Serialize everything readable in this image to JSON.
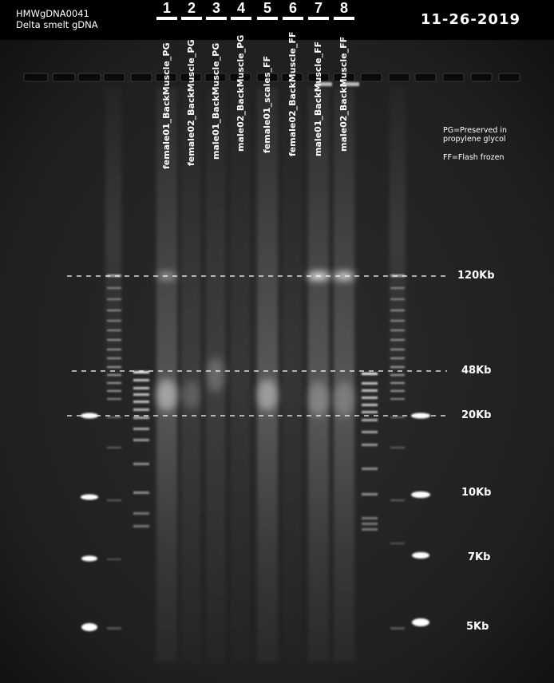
{
  "header": {
    "sample_id": "HMWgDNA0041",
    "description": "Delta smelt gDNA",
    "date": "11-26-2019"
  },
  "lanes": [
    {
      "number": "1",
      "label": "female01_BackMuscle_PG"
    },
    {
      "number": "2",
      "label": "female02_BackMuscle_PG"
    },
    {
      "number": "3",
      "label": "male01_BackMuscle_PG"
    },
    {
      "number": "4",
      "label": "male02_BackMuscle_PG"
    },
    {
      "number": "5",
      "label": "female01_scales_FF"
    },
    {
      "number": "6",
      "label": "female02_BackMuscle_FF"
    },
    {
      "number": "7",
      "label": "male01_BackMuscle_FF"
    },
    {
      "number": "8",
      "label": "male02_BackMuscle_FF"
    }
  ],
  "legend": {
    "pg": "PG=Preserved in propylene glycol",
    "ff": "FF=Flash frozen"
  },
  "size_markers": [
    "120Kb",
    "48Kb",
    "20Kb",
    "10Kb",
    "7Kb",
    "5Kb"
  ],
  "colors": {
    "gel_background": "#202020",
    "band": "#ffffff"
  }
}
